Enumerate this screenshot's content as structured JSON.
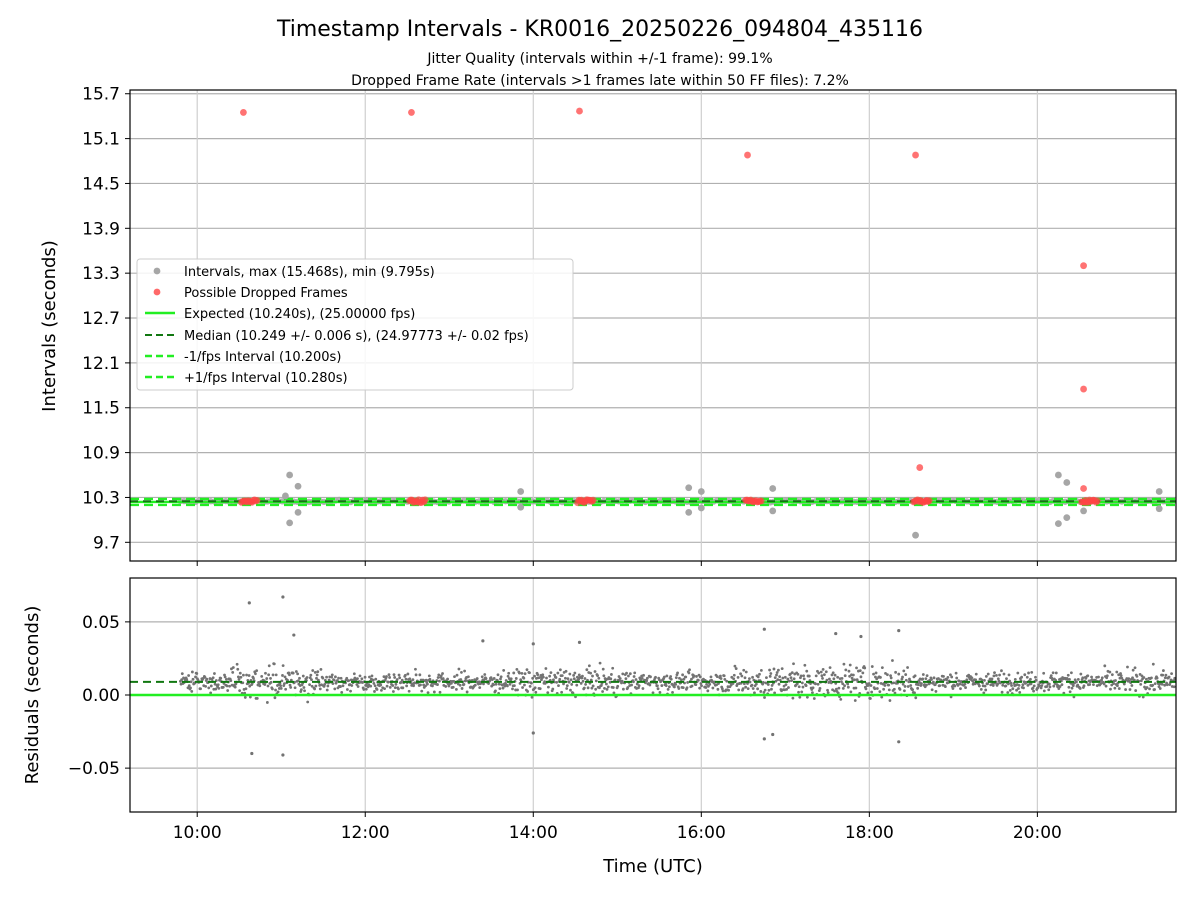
{
  "chart_data": {
    "type": "scatter",
    "title": "Timestamp Intervals - KR0016_20250226_094804_435116",
    "subtitle_lines": [
      "Jitter Quality (intervals within +/-1 frame): 99.1%",
      "Dropped Frame Rate (intervals >1 frames late within 50 FF files): 7.2%"
    ],
    "xlabel": "Time (UTC)",
    "x_range_hours": [
      9.2,
      21.65
    ],
    "x_ticks": [
      10,
      12,
      14,
      16,
      18,
      20
    ],
    "x_tick_labels": [
      "10:00",
      "12:00",
      "14:00",
      "16:00",
      "18:00",
      "20:00"
    ],
    "grid": true,
    "colors": {
      "intervals": "#a6a6a6",
      "dropped": "#ff4444",
      "expected": "#22ee22",
      "median": "#117711",
      "residual_points": "#737373"
    },
    "top_panel": {
      "ylabel": "Intervals (seconds)",
      "ylim": [
        9.45,
        15.75
      ],
      "y_ticks": [
        9.7,
        10.3,
        10.9,
        11.5,
        12.1,
        12.7,
        13.3,
        13.9,
        14.5,
        15.1,
        15.7
      ],
      "y_tick_labels": [
        "9.7",
        "10.3",
        "10.9",
        "11.5",
        "12.1",
        "12.7",
        "13.3",
        "13.9",
        "14.5",
        "15.1",
        "15.7"
      ],
      "legend_position": "center-left",
      "legend": [
        "Intervals, max (15.468s), min (9.795s)",
        "Possible Dropped Frames",
        "Expected (10.240s), (25.00000 fps)",
        "Median (10.249 +/- 0.006 s), (24.97773 +/- 0.02 fps)",
        "-1/fps Interval (10.200s)",
        "+1/fps Interval (10.280s)"
      ],
      "expected_interval": 10.24,
      "median_interval": 10.249,
      "minus_one_frame": 10.2,
      "plus_one_frame": 10.28,
      "dense_series_x_range": [
        9.8,
        21.65
      ],
      "intervals_outliers": [
        [
          11.1,
          10.6
        ],
        [
          11.2,
          10.45
        ],
        [
          11.05,
          10.32
        ],
        [
          11.1,
          9.96
        ],
        [
          11.2,
          10.1
        ],
        [
          13.85,
          10.38
        ],
        [
          13.85,
          10.17
        ],
        [
          15.85,
          10.43
        ],
        [
          16.0,
          10.38
        ],
        [
          15.85,
          10.1
        ],
        [
          16.0,
          10.16
        ],
        [
          16.85,
          10.42
        ],
        [
          16.85,
          10.12
        ],
        [
          18.55,
          9.795
        ],
        [
          20.25,
          10.6
        ],
        [
          20.35,
          10.5
        ],
        [
          20.25,
          9.95
        ],
        [
          20.35,
          10.03
        ],
        [
          20.55,
          10.12
        ],
        [
          21.45,
          10.38
        ],
        [
          21.45,
          10.15
        ]
      ],
      "dropped_frames": [
        [
          10.55,
          15.45
        ],
        [
          12.55,
          15.45
        ],
        [
          14.55,
          15.468
        ],
        [
          16.55,
          14.88
        ],
        [
          18.55,
          14.88
        ],
        [
          20.55,
          13.4
        ],
        [
          20.55,
          11.75
        ],
        [
          18.6,
          10.7
        ],
        [
          20.55,
          10.42
        ]
      ],
      "dropped_clusters_x": [
        10.62,
        12.62,
        14.62,
        16.62,
        18.62,
        20.62
      ]
    },
    "bottom_panel": {
      "ylabel": "Residuals (seconds)",
      "ylim": [
        -0.08,
        0.08
      ],
      "y_ticks": [
        -0.05,
        0.0,
        0.05
      ],
      "y_tick_labels": [
        "−0.05",
        "0.00",
        "0.05"
      ],
      "expected_residual": 0.0,
      "median_residual": 0.009,
      "outliers": [
        [
          10.62,
          0.063
        ],
        [
          11.02,
          0.067
        ],
        [
          11.15,
          0.041
        ],
        [
          10.65,
          -0.04
        ],
        [
          11.02,
          -0.041
        ],
        [
          13.4,
          0.037
        ],
        [
          14.0,
          0.035
        ],
        [
          14.55,
          0.036
        ],
        [
          16.75,
          0.045
        ],
        [
          17.6,
          0.042
        ],
        [
          17.9,
          0.04
        ],
        [
          18.35,
          0.044
        ],
        [
          16.85,
          -0.027
        ],
        [
          18.35,
          -0.032
        ],
        [
          14.0,
          -0.026
        ],
        [
          16.75,
          -0.03
        ]
      ],
      "seed": 7
    }
  }
}
